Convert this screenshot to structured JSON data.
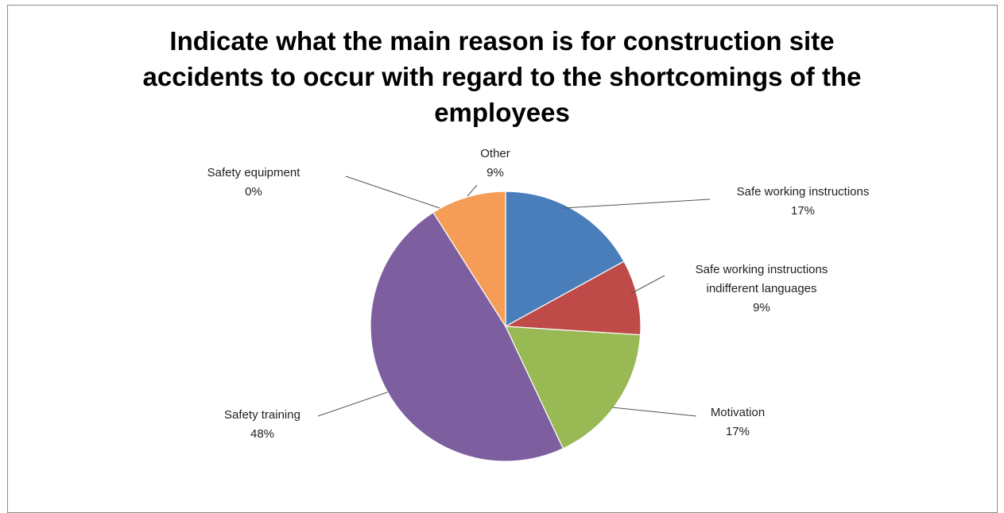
{
  "chart_data": {
    "type": "pie",
    "title": "Indicate what the main reason is for construction site accidents to occur with regard to the shortcomings of the employees",
    "title_lines": [
      "Indicate what the main reason is for construction site",
      "accidents to occur with regard to the shortcomings of the",
      "employees"
    ],
    "slices": [
      {
        "name": "Safe working instructions",
        "name_lines": [
          "Safe working instructions"
        ],
        "value": 17,
        "label": "17%",
        "color": "#4a7ebb"
      },
      {
        "name": "Safe working instructions indifferent languages",
        "name_lines": [
          "Safe working instructions",
          "indifferent languages"
        ],
        "value": 9,
        "label": "9%",
        "color": "#be4b48"
      },
      {
        "name": "Motivation",
        "name_lines": [
          "Motivation"
        ],
        "value": 17,
        "label": "17%",
        "color": "#98b954"
      },
      {
        "name": "Safety training",
        "name_lines": [
          "Safety training"
        ],
        "value": 48,
        "label": "48%",
        "color": "#7d5fa0"
      },
      {
        "name": "Safety equipment",
        "name_lines": [
          "Safety equipment"
        ],
        "value": 0,
        "label": "0%",
        "color": "#46aac5"
      },
      {
        "name": "Other",
        "name_lines": [
          "Other"
        ],
        "value": 9,
        "label": "9%",
        "color": "#f59d56"
      }
    ],
    "legend": "none",
    "data_labels": "outside with leader lines"
  }
}
